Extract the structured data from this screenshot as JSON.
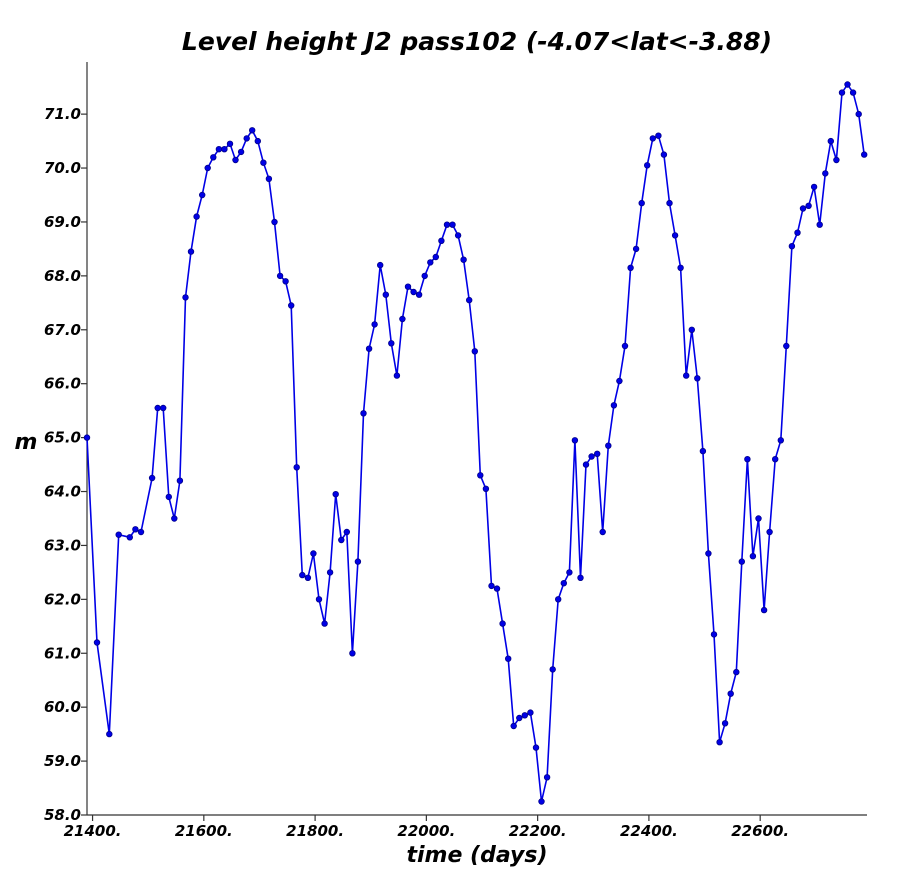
{
  "chart_data": {
    "type": "line",
    "title": "Level height J2 pass102 (-4.07<lat<-3.88)",
    "xlabel": "time (days)",
    "ylabel": "m",
    "xlim": [
      21390,
      22792
    ],
    "ylim": [
      58.0,
      71.8
    ],
    "x_ticks": [
      21400,
      21600,
      21800,
      22000,
      22200,
      22400,
      22600
    ],
    "x_tick_labels": [
      "21400.",
      "21600.",
      "21800.",
      "22000.",
      "22200.",
      "22400.",
      "22600."
    ],
    "y_ticks": [
      58,
      59,
      60,
      61,
      62,
      63,
      64,
      65,
      66,
      67,
      68,
      69,
      70,
      71
    ],
    "y_tick_labels": [
      "58.0",
      "59.0",
      "60.0",
      "61.0",
      "62.0",
      "63.0",
      "64.0",
      "65.0",
      "66.0",
      "67.0",
      "68.0",
      "69.0",
      "70.0",
      "71.0"
    ],
    "grid": false,
    "series_color": "#0000e6",
    "series": [
      {
        "x": [
          21390,
          21408,
          21430,
          21447,
          21467,
          21477,
          21487,
          21507,
          21517,
          21527,
          21537,
          21547,
          21557,
          21567,
          21577,
          21587,
          21597,
          21607,
          21617,
          21627,
          21637,
          21647,
          21657,
          21667,
          21677,
          21687,
          21697,
          21707,
          21717,
          21727,
          21737,
          21747,
          21757,
          21767,
          21777,
          21787,
          21797,
          21807,
          21817,
          21827,
          21837,
          21847,
          21857,
          21867,
          21877,
          21887,
          21897,
          21907,
          21917,
          21927,
          21937,
          21947,
          21957,
          21967,
          21977,
          21987,
          21997,
          22007,
          22017,
          22027,
          22037,
          22047,
          22057,
          22067,
          22077,
          22087,
          22097,
          22107,
          22117,
          22127,
          22137,
          22147,
          22157,
          22167,
          22177,
          22187,
          22197,
          22207,
          22217,
          22227,
          22237,
          22247,
          22257,
          22267,
          22277,
          22287,
          22297,
          22307,
          22317,
          22327,
          22337,
          22347,
          22357,
          22367,
          22377,
          22387,
          22397,
          22407,
          22417,
          22427,
          22437,
          22447,
          22457,
          22467,
          22477,
          22487,
          22497,
          22507,
          22517,
          22527,
          22537,
          22547,
          22557,
          22567,
          22577,
          22587,
          22597,
          22607,
          22617,
          22627,
          22637,
          22647,
          22657,
          22667,
          22677,
          22687,
          22697,
          22707,
          22717,
          22727,
          22737,
          22747,
          22757,
          22767,
          22777,
          22787
        ],
        "y": [
          65.0,
          61.2,
          59.5,
          63.2,
          63.15,
          63.3,
          63.25,
          64.25,
          65.55,
          65.55,
          63.9,
          63.5,
          64.2,
          67.6,
          68.45,
          69.1,
          69.5,
          70.0,
          70.2,
          70.35,
          70.35,
          70.45,
          70.15,
          70.3,
          70.55,
          70.7,
          70.5,
          70.1,
          69.8,
          69.0,
          68.0,
          67.9,
          67.45,
          64.45,
          62.45,
          62.4,
          62.85,
          62.0,
          61.55,
          62.5,
          63.95,
          63.1,
          63.25,
          61.0,
          62.7,
          65.45,
          66.65,
          67.1,
          68.2,
          67.65,
          66.75,
          66.15,
          67.2,
          67.8,
          67.7,
          67.65,
          68.0,
          68.25,
          68.35,
          68.65,
          68.95,
          68.95,
          68.75,
          68.3,
          67.55,
          66.6,
          64.3,
          64.05,
          62.25,
          62.2,
          61.55,
          60.9,
          59.65,
          59.8,
          59.85,
          59.9,
          59.25,
          58.25,
          58.7,
          60.7,
          62.0,
          62.3,
          62.5,
          64.95,
          62.4,
          64.5,
          64.65,
          64.7,
          63.25,
          64.85,
          65.6,
          66.05,
          66.7,
          68.15,
          68.5,
          69.35,
          70.05,
          70.55,
          70.6,
          70.25,
          69.35,
          68.75,
          68.15,
          66.15,
          67.0,
          66.1,
          64.75,
          62.85,
          61.35,
          59.35,
          59.7,
          60.25,
          60.65,
          62.7,
          64.6,
          62.8,
          63.5,
          61.8,
          63.25,
          64.6,
          64.95,
          66.7,
          68.55,
          68.8,
          69.25,
          69.3,
          69.65,
          68.95,
          69.9,
          70.5,
          70.15,
          71.4,
          71.55,
          71.4,
          71.0,
          70.25
        ]
      }
    ]
  }
}
